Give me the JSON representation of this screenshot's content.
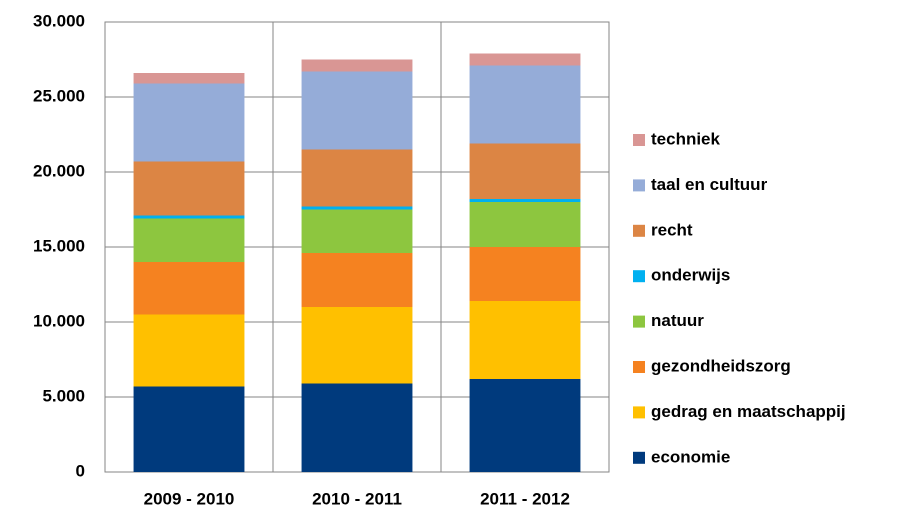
{
  "chart_data": {
    "type": "stacked-bar",
    "categories": [
      "2009 - 2010",
      "2010 - 2011",
      "2011 - 2012"
    ],
    "series": [
      {
        "name": "economie",
        "color": "#003a7d",
        "values": [
          5700,
          5900,
          6200
        ]
      },
      {
        "name": "gedrag en maatschappij",
        "color": "#ffc000",
        "values": [
          4800,
          5100,
          5200
        ]
      },
      {
        "name": "gezondheidszorg",
        "color": "#f58220",
        "values": [
          3500,
          3600,
          3600
        ]
      },
      {
        "name": "natuur",
        "color": "#8dc63f",
        "values": [
          2900,
          2900,
          3000
        ]
      },
      {
        "name": "onderwijs",
        "color": "#00b0f0",
        "values": [
          200,
          200,
          200
        ]
      },
      {
        "name": "recht",
        "color": "#dc8544",
        "values": [
          3600,
          3800,
          3700
        ]
      },
      {
        "name": "taal en cultuur",
        "color": "#95acd8",
        "values": [
          5200,
          5200,
          5200
        ]
      },
      {
        "name": "techniek",
        "color": "#d99694",
        "values": [
          700,
          800,
          800
        ]
      }
    ],
    "ylim": [
      0,
      30000
    ],
    "yticks": [
      0,
      {
        "value": 5000,
        "label": "5.000"
      },
      {
        "value": 10000,
        "label": "10.000"
      },
      {
        "value": 15000,
        "label": "15.000"
      },
      {
        "value": 20000,
        "label": "20.000"
      },
      {
        "value": 25000,
        "label": "25.000"
      },
      {
        "value": 30000,
        "label": "30.000"
      }
    ],
    "grid": true,
    "legend": "right"
  }
}
